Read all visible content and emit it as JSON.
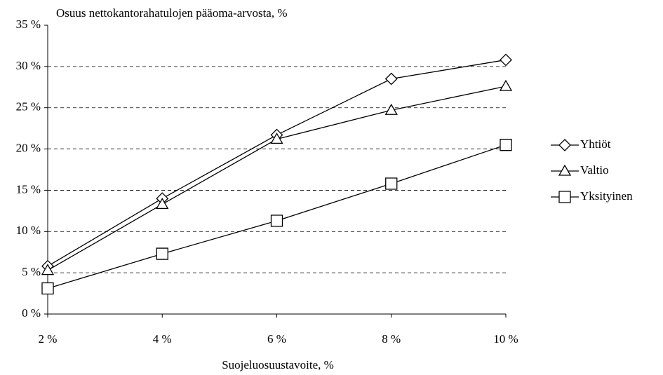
{
  "chart_data": {
    "type": "line",
    "title": "Osuus nettokantorahatulojen pääoma-arvosta, %",
    "x_label": "Suojeluosuustavoite, %",
    "categories": [
      "2 %",
      "4 %",
      "6 %",
      "8 %",
      "10 %"
    ],
    "series": [
      {
        "name": "Yhtiöt",
        "color": "#000000",
        "marker": "diamond",
        "values": [
          5.8,
          14.0,
          21.7,
          28.5,
          30.8
        ]
      },
      {
        "name": "Valtio",
        "color": "#000000",
        "marker": "triangle",
        "values": [
          5.3,
          13.3,
          21.2,
          24.7,
          27.6
        ]
      },
      {
        "name": "Yksityinen",
        "color": "#000000",
        "marker": "square",
        "values": [
          3.1,
          7.3,
          11.3,
          15.8,
          20.5
        ]
      }
    ],
    "ylim": [
      0,
      35
    ],
    "yticks": [
      {
        "value": 0,
        "label": "0 %"
      },
      {
        "value": 5,
        "label": "5 %"
      },
      {
        "value": 10,
        "label": "10 %"
      },
      {
        "value": 15,
        "label": "15 %"
      },
      {
        "value": 20,
        "label": "20 %"
      },
      {
        "value": 25,
        "label": "25 %"
      },
      {
        "value": 30,
        "label": "30 %"
      },
      {
        "value": 35,
        "label": "35 %"
      }
    ],
    "grid": true,
    "legend": "right"
  }
}
